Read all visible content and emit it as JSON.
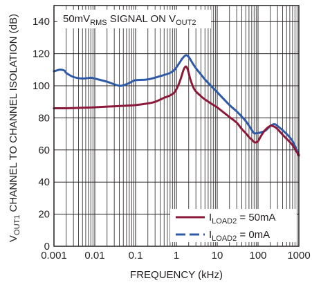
{
  "chart_data": {
    "type": "line",
    "xscale": "log",
    "xlim": [
      0.001,
      1000
    ],
    "ylim": [
      0,
      150
    ],
    "grid": true,
    "legend_position": "bottom-right",
    "xlabel": "FREQUENCY (kHz)",
    "ylabel": {
      "prefix": "V",
      "sub": "OUT1",
      "suffix": " CHANNEL TO CHANNEL ISOLATION (dB)"
    },
    "annotation": {
      "part1": "50mV",
      "sub1": "RMS",
      "part2": " SIGNAL ON V",
      "sub2": "OUT2"
    },
    "x_ticks": [
      {
        "value": 0.001,
        "label": "0.001"
      },
      {
        "value": 0.01,
        "label": "0.01"
      },
      {
        "value": 0.1,
        "label": "0.1"
      },
      {
        "value": 1,
        "label": "1"
      },
      {
        "value": 10,
        "label": "10"
      },
      {
        "value": 100,
        "label": "100"
      },
      {
        "value": 1000,
        "label": "1000"
      }
    ],
    "y_ticks": [
      {
        "value": 0,
        "label": "0"
      },
      {
        "value": 20,
        "label": "20"
      },
      {
        "value": 40,
        "label": "40"
      },
      {
        "value": 60,
        "label": "60"
      },
      {
        "value": 80,
        "label": "80"
      },
      {
        "value": 100,
        "label": "100"
      },
      {
        "value": 120,
        "label": "120"
      },
      {
        "value": 140,
        "label": "140"
      }
    ],
    "series": [
      {
        "name": "I_LOAD2 = 50mA",
        "label_prefix": "I",
        "label_sub": "LOAD2",
        "label_suffix": " = 50mA",
        "color": "#8b1a3a",
        "dash": "solid",
        "points": [
          [
            0.001,
            86
          ],
          [
            0.002,
            86
          ],
          [
            0.005,
            86.3
          ],
          [
            0.01,
            86.6
          ],
          [
            0.02,
            87
          ],
          [
            0.05,
            87.5
          ],
          [
            0.1,
            88
          ],
          [
            0.2,
            89
          ],
          [
            0.3,
            90
          ],
          [
            0.5,
            92.5
          ],
          [
            0.7,
            94
          ],
          [
            0.9,
            96
          ],
          [
            1.1,
            100
          ],
          [
            1.3,
            105
          ],
          [
            1.5,
            110
          ],
          [
            1.7,
            112
          ],
          [
            1.9,
            110
          ],
          [
            2.2,
            104
          ],
          [
            2.6,
            99
          ],
          [
            3,
            96.5
          ],
          [
            4,
            93.5
          ],
          [
            5,
            91.5
          ],
          [
            7,
            89
          ],
          [
            10,
            86.5
          ],
          [
            15,
            83
          ],
          [
            20,
            80.5
          ],
          [
            30,
            77
          ],
          [
            40,
            73
          ],
          [
            50,
            70.5
          ],
          [
            60,
            68
          ],
          [
            70,
            66.5
          ],
          [
            80,
            65
          ],
          [
            90,
            64.7
          ],
          [
            100,
            65.5
          ],
          [
            120,
            69
          ],
          [
            150,
            72.5
          ],
          [
            200,
            75
          ],
          [
            250,
            74.5
          ],
          [
            300,
            73
          ],
          [
            400,
            69.5
          ],
          [
            500,
            67
          ],
          [
            700,
            63
          ],
          [
            1000,
            56.5
          ]
        ]
      },
      {
        "name": "I_LOAD2 = 0mA",
        "label_prefix": "I",
        "label_sub": "LOAD2",
        "label_suffix": " = 0mA",
        "color": "#2e5aa8",
        "dash": "dashed-legend",
        "points": [
          [
            0.001,
            109
          ],
          [
            0.0014,
            110
          ],
          [
            0.0018,
            109.5
          ],
          [
            0.002,
            108
          ],
          [
            0.003,
            105.5
          ],
          [
            0.005,
            104.5
          ],
          [
            0.008,
            105
          ],
          [
            0.01,
            104.5
          ],
          [
            0.02,
            102.5
          ],
          [
            0.04,
            100
          ],
          [
            0.06,
            101
          ],
          [
            0.08,
            102.5
          ],
          [
            0.1,
            103.5
          ],
          [
            0.2,
            104
          ],
          [
            0.4,
            106
          ],
          [
            0.7,
            108
          ],
          [
            0.9,
            110
          ],
          [
            1.1,
            113
          ],
          [
            1.4,
            117
          ],
          [
            1.7,
            119
          ],
          [
            2.0,
            118
          ],
          [
            2.5,
            114
          ],
          [
            3,
            111
          ],
          [
            4,
            107
          ],
          [
            5,
            104
          ],
          [
            7,
            100
          ],
          [
            10,
            96
          ],
          [
            20,
            88
          ],
          [
            30,
            84
          ],
          [
            50,
            78
          ],
          [
            70,
            72.5
          ],
          [
            80,
            70.5
          ],
          [
            100,
            70.5
          ],
          [
            150,
            72
          ],
          [
            200,
            75
          ],
          [
            250,
            76
          ],
          [
            300,
            75
          ],
          [
            500,
            70
          ],
          [
            700,
            65.5
          ],
          [
            1000,
            57
          ]
        ]
      }
    ]
  }
}
